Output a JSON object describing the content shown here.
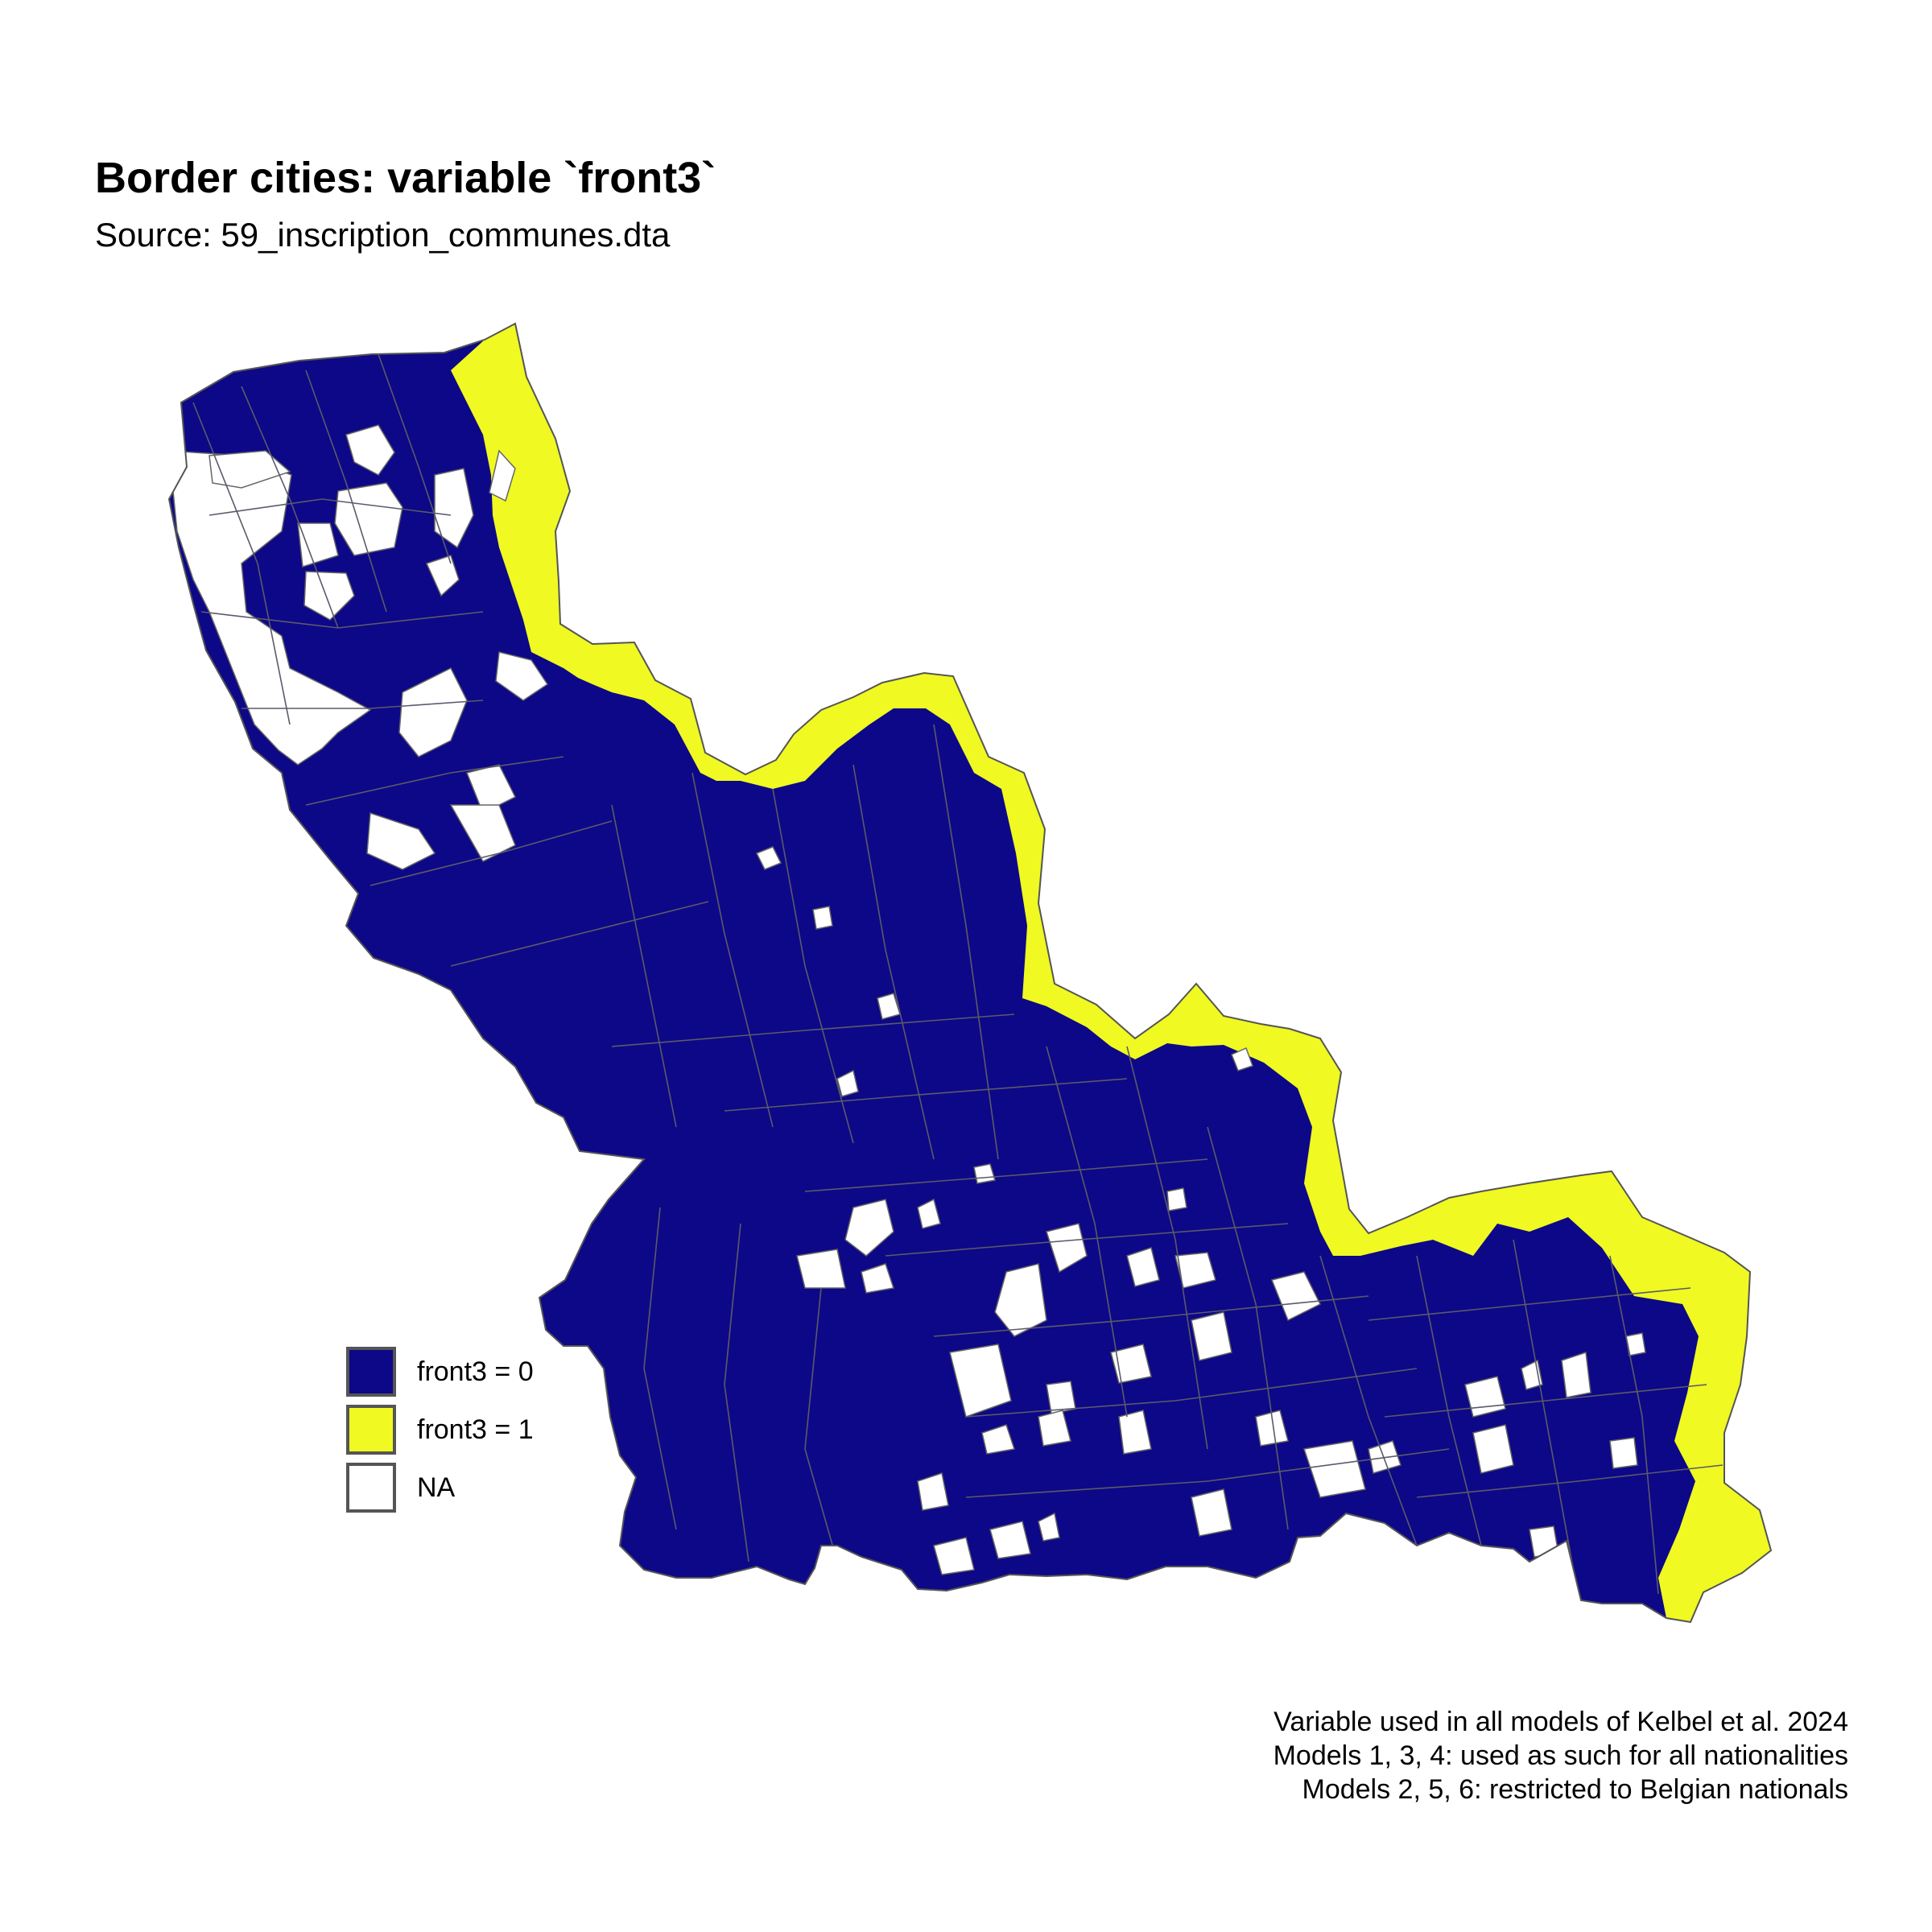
{
  "title": "Border cities: variable `front3`",
  "subtitle": "Source: 59_inscription_communes.dta",
  "legend": [
    {
      "label": "front3 = 0",
      "color": "#0d0887"
    },
    {
      "label": "front3 = 1",
      "color": "#f0f921"
    },
    {
      "label": "NA",
      "color": "#ffffff"
    }
  ],
  "caption": [
    "Variable used in all models of Kelbel et al. 2024",
    "Models 1, 3, 4: used as such for all nationalities",
    "Models 2, 5, 6: restricted to Belgian nationals"
  ]
}
